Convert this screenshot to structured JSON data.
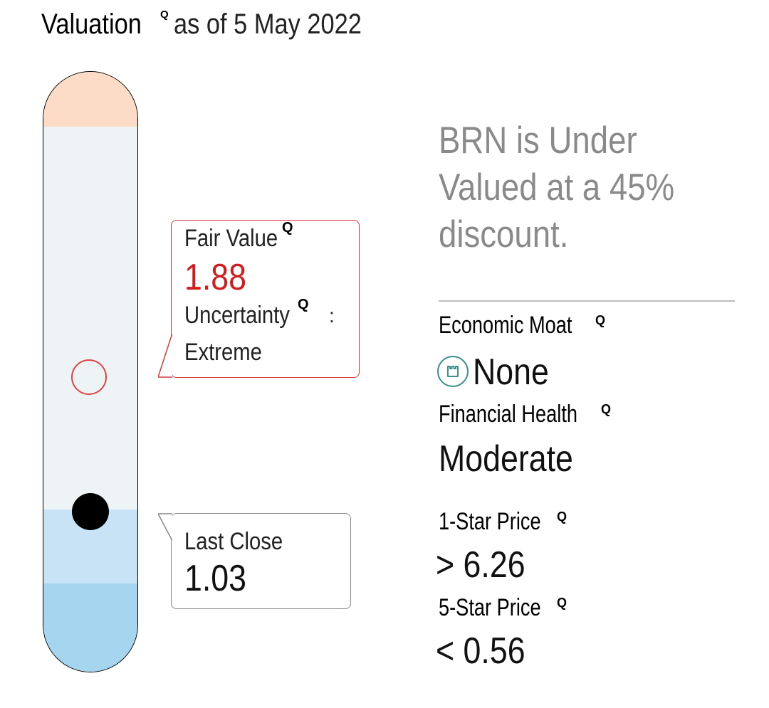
{
  "header": {
    "title": "Valuation",
    "info_icon": "Q",
    "as_of": "as of 5 May 2022"
  },
  "fair_value": {
    "label": "Fair Value",
    "info_icon": "Q",
    "value": "1.88",
    "uncertainty_label": "Uncertainty",
    "uncertainty_info_icon": "Q",
    "uncertainty_separator": ":",
    "uncertainty_value": "Extreme"
  },
  "last_close": {
    "label": "Last Close",
    "value": "1.03"
  },
  "summary": {
    "text": "BRN is Under Valued at a 45% discount."
  },
  "economic_moat": {
    "label": "Economic Moat",
    "info_icon": "Q",
    "icon": "castle-tower-icon",
    "value": "None"
  },
  "financial_health": {
    "label": "Financial Health",
    "info_icon": "Q",
    "value": "Moderate"
  },
  "one_star_price": {
    "label": "1-Star Price",
    "info_icon": "Q",
    "value": "> 6.26"
  },
  "five_star_price": {
    "label": "5-Star Price",
    "info_icon": "Q",
    "value": "< 0.56"
  },
  "colors": {
    "overvalued_zone": "#fcdcc6",
    "fair_zone": "#eef4f6",
    "undervalued_zone_light": "#c8e3f5",
    "undervalued_zone_dark": "#a6d6ef",
    "fair_value_accent": "#d01e1e",
    "summary_text": "#8a8a8a",
    "moat_icon": "#3b8f87"
  }
}
